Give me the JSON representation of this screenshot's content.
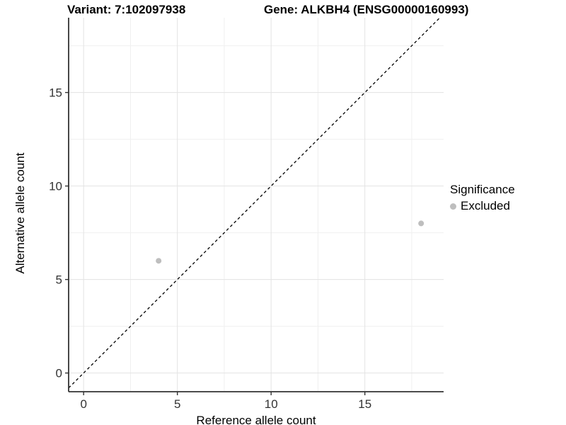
{
  "titles": {
    "left": "Variant: 7:102097938",
    "right": "Gene: ALKBH4 (ENSG00000160993)"
  },
  "axes": {
    "x_label": "Reference allele count",
    "y_label": "Alternative allele count"
  },
  "legend": {
    "title": "Significance",
    "items": [
      {
        "label": "Excluded",
        "color": "#bebebe"
      }
    ]
  },
  "chart_data": {
    "type": "scatter",
    "title": "Variant: 7:102097938 / Gene: ALKBH4 (ENSG00000160993)",
    "xlabel": "Reference allele count",
    "ylabel": "Alternative allele count",
    "series": [
      {
        "name": "Excluded",
        "color": "#bebebe",
        "points": [
          {
            "x": 4,
            "y": 6
          },
          {
            "x": 18,
            "y": 8
          }
        ]
      }
    ],
    "x_ticks": [
      0,
      5,
      10,
      15
    ],
    "y_ticks": [
      0,
      5,
      10,
      15
    ],
    "x_minor": [
      2.5,
      7.5,
      12.5,
      17.5
    ],
    "y_minor": [
      2.5,
      7.5,
      12.5,
      17.5
    ],
    "xlim": [
      -0.8,
      19.2
    ],
    "ylim": [
      -1,
      19
    ],
    "grid": "on",
    "legend_position": "right",
    "identity_line": {
      "slope": 1,
      "intercept": 0,
      "style": "dashed",
      "color": "#000000"
    },
    "point_radius": 4,
    "colors": {
      "grid_major": "#e3e3e3",
      "grid_minor": "#f0f0f0",
      "axis": "#333333",
      "tick_text": "#333333"
    }
  }
}
